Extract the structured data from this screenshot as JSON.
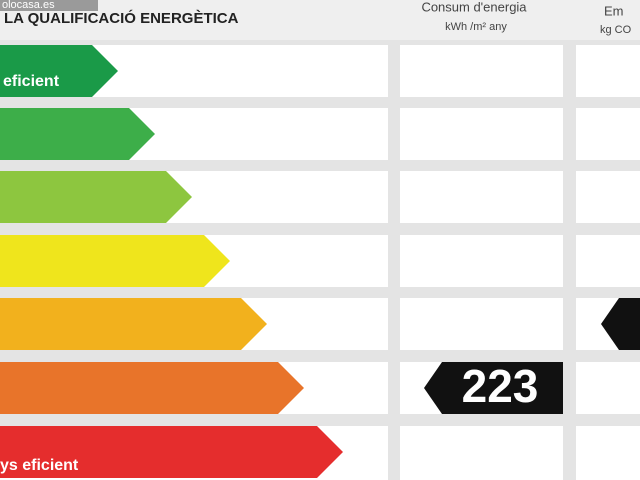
{
  "watermark": "olocasa.es",
  "header": {
    "title": "LA QUALIFICACIÓ ENERGÈTICA",
    "columns": [
      {
        "title": "Consum d'energia",
        "unit": "kWh /m² any"
      },
      {
        "title": "Em",
        "unit": "kg CO"
      }
    ]
  },
  "scale": {
    "top_label": "eficient",
    "bottom_label": "ys eficient"
  },
  "rating": {
    "value": 223
  }
}
